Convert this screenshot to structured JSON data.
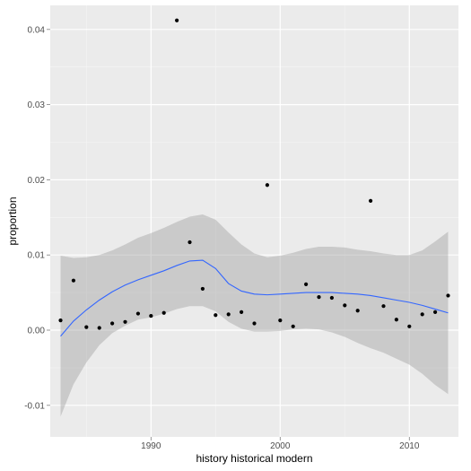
{
  "chart_data": {
    "type": "scatter",
    "xlabel": "history historical modern",
    "ylabel": "proportion",
    "xlim": [
      1982.2,
      2013.8
    ],
    "ylim": [
      -0.0142,
      0.0432
    ],
    "x_ticks": [
      1990,
      2000,
      2010
    ],
    "x_minor_ticks": [
      1985,
      1995,
      2005
    ],
    "y_ticks": [
      -0.01,
      0.0,
      0.01,
      0.02,
      0.03,
      0.04
    ],
    "y_tick_labels": [
      "-0.01",
      "0.00",
      "0.01",
      "0.02",
      "0.03",
      "0.04"
    ],
    "y_minor_ticks": [
      -0.005,
      0.005,
      0.015,
      0.025,
      0.035
    ],
    "x_tick_labels": [
      "1990",
      "2000",
      "2010"
    ],
    "grid": true,
    "points": [
      {
        "x": 1983,
        "y": 0.0013
      },
      {
        "x": 1984,
        "y": 0.0066
      },
      {
        "x": 1985,
        "y": 0.0004
      },
      {
        "x": 1986,
        "y": 0.0003
      },
      {
        "x": 1987,
        "y": 0.0009
      },
      {
        "x": 1988,
        "y": 0.0011
      },
      {
        "x": 1989,
        "y": 0.0022
      },
      {
        "x": 1990,
        "y": 0.0019
      },
      {
        "x": 1991,
        "y": 0.0023
      },
      {
        "x": 1992,
        "y": 0.0412
      },
      {
        "x": 1993,
        "y": 0.0117
      },
      {
        "x": 1994,
        "y": 0.0055
      },
      {
        "x": 1995,
        "y": 0.002
      },
      {
        "x": 1996,
        "y": 0.0021
      },
      {
        "x": 1997,
        "y": 0.0024
      },
      {
        "x": 1998,
        "y": 0.0009
      },
      {
        "x": 1999,
        "y": 0.0193
      },
      {
        "x": 2000,
        "y": 0.0013
      },
      {
        "x": 2001,
        "y": 0.0005
      },
      {
        "x": 2002,
        "y": 0.0061
      },
      {
        "x": 2003,
        "y": 0.0044
      },
      {
        "x": 2004,
        "y": 0.0043
      },
      {
        "x": 2005,
        "y": 0.0033
      },
      {
        "x": 2006,
        "y": 0.0026
      },
      {
        "x": 2007,
        "y": 0.0172
      },
      {
        "x": 2008,
        "y": 0.0032
      },
      {
        "x": 2009,
        "y": 0.0014
      },
      {
        "x": 2010,
        "y": 0.0005
      },
      {
        "x": 2011,
        "y": 0.0021
      },
      {
        "x": 2012,
        "y": 0.0024
      },
      {
        "x": 2013,
        "y": 0.0046
      }
    ],
    "smooth": {
      "method": "loess",
      "x": [
        1983,
        1984,
        1985,
        1986,
        1987,
        1988,
        1989,
        1990,
        1991,
        1992,
        1993,
        1994,
        1995,
        1996,
        1997,
        1998,
        1999,
        2000,
        2001,
        2002,
        2003,
        2004,
        2005,
        2006,
        2007,
        2008,
        2009,
        2010,
        2011,
        2012,
        2013
      ],
      "y": [
        -0.0008,
        0.0012,
        0.0027,
        0.004,
        0.0051,
        0.006,
        0.0067,
        0.0073,
        0.0079,
        0.0086,
        0.0092,
        0.0093,
        0.0082,
        0.0062,
        0.0052,
        0.0048,
        0.0047,
        0.0048,
        0.0049,
        0.005,
        0.005,
        0.005,
        0.0049,
        0.0048,
        0.0046,
        0.0043,
        0.004,
        0.0037,
        0.0033,
        0.0028,
        0.0023
      ],
      "upper": [
        0.0099,
        0.0096,
        0.0097,
        0.01,
        0.0106,
        0.0114,
        0.0123,
        0.0129,
        0.0136,
        0.0144,
        0.0151,
        0.0154,
        0.0147,
        0.013,
        0.0114,
        0.0102,
        0.0097,
        0.0099,
        0.0103,
        0.0108,
        0.0111,
        0.0111,
        0.011,
        0.0107,
        0.0105,
        0.0102,
        0.01,
        0.01,
        0.0106,
        0.0118,
        0.0131
      ],
      "lower": [
        -0.0115,
        -0.0072,
        -0.0043,
        -0.002,
        -0.0004,
        0.0006,
        0.0014,
        0.0017,
        0.0022,
        0.0028,
        0.0032,
        0.0032,
        0.0025,
        0.0011,
        0.0002,
        -0.0002,
        -0.0002,
        -0.0001,
        0.0001,
        0.0002,
        0.0001,
        -0.0003,
        -0.0009,
        -0.0017,
        -0.0024,
        -0.003,
        -0.0038,
        -0.0046,
        -0.0058,
        -0.0073,
        -0.0085
      ]
    },
    "colors": {
      "panel_background": "#ebebeb",
      "gridline": "#ffffff",
      "point": "#000000",
      "smooth_line": "#3366ff",
      "ribbon": "#999999"
    }
  }
}
